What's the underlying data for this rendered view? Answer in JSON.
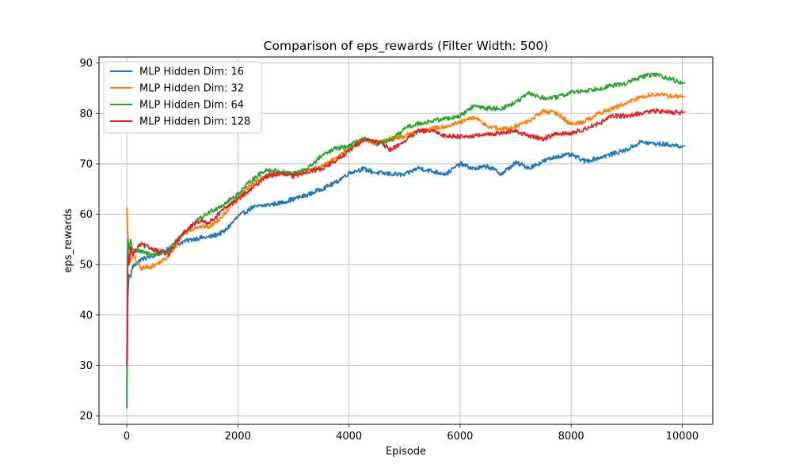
{
  "chart_data": {
    "type": "line",
    "title": "Comparison of eps_rewards (Filter Width: 500)",
    "xlabel": "Episode",
    "ylabel": "eps_rewards",
    "xlim": [
      -500,
      10550
    ],
    "ylim": [
      18.3,
      91.2
    ],
    "xticks": [
      0,
      2000,
      4000,
      6000,
      8000,
      10000
    ],
    "yticks": [
      20,
      30,
      40,
      50,
      60,
      70,
      80,
      90
    ],
    "grid": true,
    "legend_position": "top-left",
    "x": [
      0,
      100,
      250,
      500,
      750,
      1000,
      1250,
      1500,
      1750,
      2000,
      2250,
      2500,
      2750,
      3000,
      3250,
      3500,
      3750,
      4000,
      4250,
      4500,
      4750,
      5000,
      5250,
      5500,
      5750,
      6000,
      6250,
      6500,
      6750,
      7000,
      7250,
      7500,
      7750,
      8000,
      8250,
      8500,
      8750,
      9000,
      9250,
      9500,
      9750,
      10000
    ],
    "series": [
      {
        "name": "MLP Hidden Dim: 16",
        "color": "#1f77b4",
        "start": [
          [
            0,
            21.5
          ],
          [
            20,
            44
          ],
          [
            40,
            48
          ],
          [
            70,
            47.5
          ],
          [
            100,
            49.5
          ]
        ],
        "values": [
          47.5,
          49.5,
          51.0,
          51.8,
          53.0,
          54.5,
          55.2,
          55.5,
          56.5,
          59.5,
          61.3,
          61.8,
          62.2,
          63.0,
          63.8,
          65.0,
          66.2,
          68.2,
          69.0,
          68.2,
          68.0,
          67.8,
          69.2,
          68.5,
          68.0,
          70.0,
          69.0,
          69.5,
          68.0,
          70.2,
          69.2,
          70.5,
          71.5,
          71.8,
          70.5,
          71.2,
          72.0,
          72.8,
          74.3,
          74.0,
          73.8,
          73.5
        ]
      },
      {
        "name": "MLP Hidden Dim: 32",
        "color": "#ff7f0e",
        "start": [
          [
            0,
            61.3
          ],
          [
            20,
            56
          ],
          [
            40,
            52
          ],
          [
            70,
            50.5
          ],
          [
            100,
            52
          ]
        ],
        "values": [
          61.3,
          52.0,
          49.2,
          49.8,
          51.5,
          56.0,
          57.5,
          57.5,
          60.0,
          63.5,
          66.0,
          67.5,
          68.3,
          68.0,
          68.8,
          69.3,
          71.0,
          73.2,
          74.8,
          74.0,
          75.0,
          75.5,
          76.5,
          77.0,
          77.5,
          78.2,
          79.2,
          77.5,
          76.8,
          77.5,
          78.5,
          80.5,
          80.0,
          77.8,
          78.5,
          80.0,
          81.0,
          82.0,
          83.3,
          83.8,
          83.5,
          83.3
        ]
      },
      {
        "name": "MLP Hidden Dim: 64",
        "color": "#2ca02c",
        "start": [
          [
            0,
            25
          ],
          [
            20,
            55
          ],
          [
            40,
            53
          ],
          [
            70,
            55
          ],
          [
            100,
            53
          ]
        ],
        "values": [
          25.0,
          53.0,
          52.5,
          52.0,
          52.8,
          56.0,
          58.5,
          60.5,
          62.0,
          64.0,
          66.8,
          68.8,
          68.5,
          68.0,
          69.0,
          71.5,
          73.0,
          73.5,
          75.0,
          74.0,
          74.5,
          77.0,
          78.0,
          78.5,
          79.0,
          79.5,
          81.5,
          81.0,
          81.0,
          82.2,
          84.0,
          83.0,
          83.2,
          84.2,
          84.5,
          85.0,
          85.5,
          86.0,
          87.2,
          87.8,
          87.0,
          86.0
        ]
      },
      {
        "name": "MLP Hidden Dim: 128",
        "color": "#d62728",
        "start": [
          [
            0,
            30
          ],
          [
            20,
            52
          ],
          [
            40,
            50
          ],
          [
            70,
            53.5
          ],
          [
            100,
            52
          ]
        ],
        "values": [
          30.0,
          52.0,
          54.0,
          53.0,
          52.0,
          56.0,
          58.5,
          58.5,
          61.0,
          63.0,
          65.0,
          67.5,
          68.0,
          67.5,
          68.5,
          69.0,
          70.5,
          72.5,
          74.8,
          74.5,
          72.8,
          74.5,
          76.5,
          76.5,
          75.5,
          75.5,
          75.5,
          75.8,
          76.2,
          76.5,
          75.5,
          75.0,
          76.0,
          76.0,
          77.0,
          78.0,
          79.5,
          79.5,
          80.0,
          80.5,
          80.3,
          80.2
        ]
      }
    ]
  }
}
